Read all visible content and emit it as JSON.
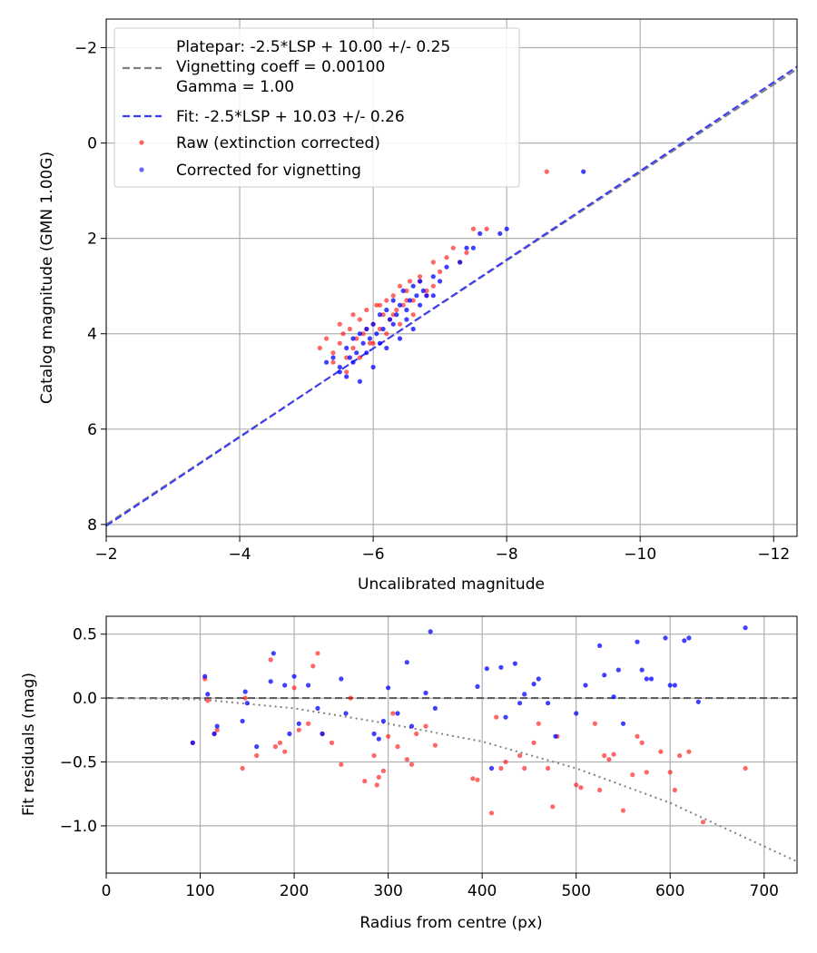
{
  "chart_data": [
    {
      "type": "scatter",
      "xlabel": "Uncalibrated magnitude",
      "ylabel": "Catalog magnitude (GMN 1.00G)",
      "xlim": [
        -2.0,
        -12.35
      ],
      "ylim": [
        8.25,
        -2.6
      ],
      "x_ticks": [
        -2,
        -4,
        -6,
        -8,
        -10,
        -12
      ],
      "x_tick_labels": [
        "−2",
        "−4",
        "−6",
        "−8",
        "−10",
        "−12"
      ],
      "y_ticks": [
        -2,
        0,
        2,
        4,
        6,
        8
      ],
      "y_tick_labels": [
        "−2",
        "0",
        "2",
        "4",
        "6",
        "8"
      ],
      "grid": true,
      "legend_position": "top-left",
      "legend": [
        {
          "label": "Platepar: -2.5*LSP + 10.00 +/- 0.25\nVignetting coeff = 0.00100\nGamma = 1.00",
          "style": "dashed",
          "color": "#808080"
        },
        {
          "label": "Fit: -2.5*LSP + 10.03 +/- 0.26",
          "style": "dashed",
          "color": "#3a3aff"
        },
        {
          "label": "Raw (extinction corrected)",
          "style": "marker",
          "color": "#ff0000"
        },
        {
          "label": "Corrected for vignetting",
          "style": "marker",
          "color": "#0000ff"
        }
      ],
      "lines": [
        {
          "name": "Platepar",
          "x": [
            -2.0,
            -12.35
          ],
          "y": [
            8.0,
            -1.55
          ],
          "color": "#808080",
          "dash": true
        },
        {
          "name": "Fit",
          "x": [
            -2.0,
            -12.35
          ],
          "y": [
            8.03,
            -1.6
          ],
          "color": "#3a3aff",
          "dash": true
        }
      ],
      "series": [
        {
          "name": "Raw (extinction corrected)",
          "color": "#ff0000",
          "x": [
            -5.2,
            -5.3,
            -5.4,
            -5.5,
            -5.55,
            -5.6,
            -5.65,
            -5.7,
            -5.75,
            -5.8,
            -5.85,
            -5.9,
            -5.95,
            -6.0,
            -6.05,
            -6.1,
            -6.15,
            -6.2,
            -6.25,
            -6.3,
            -6.35,
            -6.4,
            -6.45,
            -6.5,
            -6.55,
            -6.6,
            -6.7,
            -6.8,
            -6.9,
            -7.0,
            -7.1,
            -7.2,
            -7.4,
            -7.5,
            -7.7,
            -8.6,
            -5.4,
            -5.6,
            -5.8,
            -6.0,
            -6.2,
            -6.4,
            -6.6,
            -6.8,
            -5.5,
            -5.7,
            -5.9,
            -6.1,
            -6.3,
            -6.5,
            -6.7,
            -6.9,
            -7.3
          ],
          "y": [
            4.3,
            4.1,
            4.4,
            4.2,
            4.0,
            4.5,
            3.9,
            4.3,
            4.1,
            3.7,
            4.0,
            3.5,
            4.2,
            3.8,
            3.4,
            3.9,
            3.6,
            3.3,
            3.7,
            3.2,
            3.5,
            3.0,
            3.4,
            3.1,
            2.9,
            3.3,
            2.9,
            3.1,
            2.5,
            2.7,
            2.4,
            2.2,
            2.3,
            1.8,
            1.8,
            0.6,
            4.6,
            4.8,
            4.5,
            4.2,
            4.0,
            3.8,
            3.6,
            3.2,
            3.8,
            3.6,
            3.9,
            3.4,
            3.6,
            3.3,
            2.8,
            3.0,
            2.5
          ]
        },
        {
          "name": "Corrected for vignetting",
          "color": "#0000ff",
          "x": [
            -5.3,
            -5.4,
            -5.5,
            -5.6,
            -5.65,
            -5.7,
            -5.75,
            -5.8,
            -5.85,
            -5.9,
            -5.95,
            -6.0,
            -6.05,
            -6.1,
            -6.15,
            -6.2,
            -6.25,
            -6.3,
            -6.35,
            -6.4,
            -6.45,
            -6.5,
            -6.55,
            -6.6,
            -6.65,
            -6.7,
            -6.75,
            -6.8,
            -6.9,
            -7.0,
            -7.1,
            -7.3,
            -7.4,
            -7.5,
            -7.6,
            -7.9,
            -8.0,
            -9.15,
            -5.6,
            -5.8,
            -6.0,
            -6.2,
            -6.4,
            -6.6,
            -5.5,
            -5.7,
            -5.9,
            -6.1,
            -6.3,
            -6.5,
            -6.7,
            -6.9
          ],
          "y": [
            4.6,
            4.5,
            4.7,
            4.3,
            4.5,
            4.1,
            4.4,
            4.0,
            4.2,
            3.9,
            4.1,
            3.8,
            4.0,
            3.6,
            3.9,
            3.5,
            3.7,
            3.3,
            3.6,
            3.4,
            3.1,
            3.5,
            3.3,
            3.0,
            3.2,
            2.9,
            3.1,
            3.2,
            2.8,
            2.9,
            2.6,
            2.5,
            2.2,
            2.2,
            1.9,
            1.9,
            1.8,
            0.6,
            4.9,
            5.0,
            4.7,
            4.3,
            4.1,
            3.9,
            4.8,
            4.6,
            4.4,
            4.2,
            3.8,
            3.7,
            3.4,
            3.2
          ]
        }
      ]
    },
    {
      "type": "scatter",
      "xlabel": "Radius from centre (px)",
      "ylabel": "Fit residuals (mag)",
      "xlim": [
        0,
        735
      ],
      "ylim": [
        -1.37,
        0.64
      ],
      "x_ticks": [
        0,
        100,
        200,
        300,
        400,
        500,
        600,
        700
      ],
      "x_tick_labels": [
        "0",
        "100",
        "200",
        "300",
        "400",
        "500",
        "600",
        "700"
      ],
      "y_ticks": [
        0.5,
        0.0,
        -0.5,
        -1.0
      ],
      "y_tick_labels": [
        "0.5",
        "0.0",
        "−0.5",
        "−1.0"
      ],
      "grid": true,
      "lines": [
        {
          "name": "zero",
          "x": [
            0,
            735
          ],
          "y": [
            0,
            0
          ],
          "color": "#555555",
          "dash": true
        },
        {
          "name": "vignetting model",
          "x": [
            0,
            100,
            200,
            300,
            400,
            500,
            600,
            735
          ],
          "y": [
            0.0,
            -0.01,
            -0.08,
            -0.2,
            -0.34,
            -0.55,
            -0.82,
            -1.28
          ],
          "color": "#808080",
          "dotted": true
        }
      ],
      "series": [
        {
          "name": "Raw (extinction corrected)",
          "color": "#ff0000",
          "x": [
            92,
            105,
            108,
            115,
            118,
            145,
            148,
            160,
            175,
            180,
            185,
            190,
            200,
            205,
            215,
            220,
            225,
            230,
            240,
            250,
            260,
            275,
            285,
            288,
            290,
            295,
            300,
            305,
            310,
            320,
            325,
            330,
            340,
            350,
            390,
            395,
            410,
            415,
            420,
            425,
            440,
            445,
            455,
            460,
            470,
            475,
            480,
            500,
            505,
            520,
            525,
            530,
            535,
            540,
            550,
            560,
            565,
            570,
            575,
            590,
            600,
            605,
            610,
            620,
            635,
            680
          ],
          "y": [
            -0.35,
            0.15,
            -0.02,
            -0.28,
            -0.25,
            -0.55,
            0.0,
            -0.45,
            0.3,
            -0.38,
            -0.35,
            -0.42,
            0.08,
            -0.25,
            -0.2,
            0.25,
            0.35,
            -0.28,
            -0.35,
            -0.52,
            0.0,
            -0.65,
            -0.45,
            -0.68,
            -0.62,
            -0.57,
            -0.3,
            -0.12,
            -0.38,
            -0.48,
            -0.52,
            -0.28,
            -0.22,
            -0.37,
            -0.63,
            -0.64,
            -0.9,
            -0.15,
            -0.55,
            -0.5,
            -0.45,
            -0.55,
            -0.35,
            -0.2,
            -0.55,
            -0.85,
            -0.3,
            -0.68,
            -0.7,
            -0.2,
            -0.72,
            -0.45,
            -0.48,
            -0.44,
            -0.88,
            -0.6,
            -0.3,
            -0.35,
            -0.58,
            -0.42,
            -0.58,
            -0.72,
            -0.45,
            -0.42,
            -0.97,
            -0.55
          ]
        },
        {
          "name": "Corrected for vignetting",
          "color": "#0000ff",
          "x": [
            92,
            105,
            108,
            115,
            118,
            145,
            148,
            150,
            160,
            175,
            178,
            190,
            195,
            200,
            205,
            215,
            225,
            230,
            250,
            255,
            285,
            290,
            295,
            300,
            310,
            320,
            325,
            340,
            345,
            350,
            395,
            405,
            410,
            420,
            425,
            435,
            440,
            445,
            455,
            460,
            470,
            478,
            500,
            510,
            525,
            530,
            540,
            545,
            550,
            565,
            570,
            575,
            580,
            595,
            600,
            605,
            615,
            620,
            630,
            680
          ],
          "y": [
            -0.35,
            0.17,
            0.03,
            -0.28,
            -0.22,
            -0.18,
            0.05,
            -0.04,
            -0.38,
            0.13,
            0.35,
            0.1,
            -0.28,
            0.17,
            -0.2,
            0.1,
            -0.08,
            -0.28,
            0.15,
            -0.12,
            -0.28,
            -0.32,
            -0.18,
            0.08,
            -0.12,
            0.28,
            -0.22,
            0.04,
            0.52,
            -0.08,
            0.09,
            0.23,
            -0.55,
            0.24,
            -0.15,
            0.27,
            -0.04,
            0.03,
            0.11,
            0.15,
            -0.04,
            -0.3,
            -0.12,
            0.1,
            0.41,
            0.18,
            0.01,
            0.22,
            -0.2,
            0.44,
            0.22,
            0.15,
            0.15,
            0.47,
            0.1,
            0.1,
            0.45,
            0.47,
            -0.03,
            0.55
          ]
        }
      ]
    }
  ]
}
